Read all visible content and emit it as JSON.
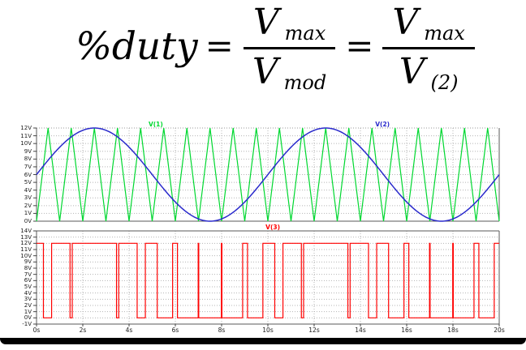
{
  "formula": {
    "lhs": "%duty",
    "eq1": "=",
    "eq2": "=",
    "frac1": {
      "num_base": "V",
      "num_sub": "max",
      "den_base": "V",
      "den_sub": "mod"
    },
    "frac2": {
      "num_base": "V",
      "num_sub": "max",
      "den_base": "V",
      "den_sub": "(2)"
    }
  },
  "colors": {
    "carrier": "#00d830",
    "modulator": "#2a2acc",
    "pwm": "#ff0000",
    "grid": "#b5b5b5",
    "axis": "#5a5a5a",
    "tick_text": "#1a1a1a",
    "bottom_bar": "#000000"
  },
  "chart_data": [
    {
      "type": "line",
      "plot": "carrier-and-modulator",
      "x": {
        "min": 0,
        "max": 20,
        "unit": "s",
        "gridline_step": 2,
        "tick_labels": []
      },
      "y": {
        "min": 0,
        "max": 12,
        "unit": "V",
        "gridline_step": 1,
        "tick_labels": [
          "12V",
          "11V",
          "10V",
          "9V",
          "8V",
          "7V",
          "6V",
          "5V",
          "4V",
          "3V",
          "2V",
          "1V",
          "0V"
        ]
      },
      "series": [
        {
          "name": "V(1)",
          "waveform": "triangle",
          "min_v": 0,
          "max_v": 12,
          "period_s": 1,
          "color_key": "carrier",
          "legend_x_frac": 0.242
        },
        {
          "name": "V(2)",
          "waveform": "sine",
          "offset_v": 6,
          "amplitude_v": 6,
          "period_s": 10,
          "color_key": "modulator",
          "legend_x_frac": 0.732
        }
      ]
    },
    {
      "type": "line",
      "plot": "pwm-output",
      "x": {
        "min": 0,
        "max": 20,
        "unit": "s",
        "gridline_step": 2,
        "tick_labels": [
          "0s",
          "2s",
          "4s",
          "6s",
          "8s",
          "10s",
          "12s",
          "14s",
          "16s",
          "18s",
          "20s"
        ]
      },
      "y": {
        "min": -1,
        "max": 14,
        "unit": "V",
        "gridline_step": 1,
        "tick_labels": [
          "14V",
          "13V",
          "12V",
          "11V",
          "10V",
          "9V",
          "8V",
          "7V",
          "6V",
          "5V",
          "4V",
          "3V",
          "2V",
          "1V",
          "0V",
          "-1V"
        ]
      },
      "series": [
        {
          "name": "V(3)",
          "waveform": "pwm_comparator",
          "low_v": 0,
          "high_v": 12,
          "carrier": {
            "waveform": "triangle",
            "min_v": 0,
            "max_v": 12,
            "period_s": 1
          },
          "modulator": {
            "waveform": "sine",
            "offset_v": 6,
            "amplitude_v": 6,
            "period_s": 10
          },
          "color_key": "pwm",
          "legend_x_frac": 0.495
        }
      ]
    }
  ]
}
